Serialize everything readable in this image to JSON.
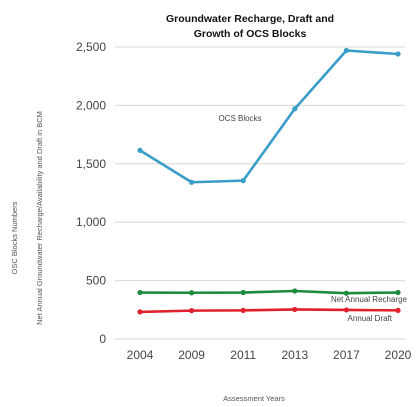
{
  "chart_data": {
    "type": "line",
    "title_lines": [
      "Groundwater Recharge, Draft and",
      "Growth of OCS Blocks"
    ],
    "xlabel": "Assessment Years",
    "ylabel_outer": "OSC Blocks Numbers",
    "ylabel_inner": "Net Annual Groundwater Recharge/Availability and Draft in BCM",
    "categories": [
      "2004",
      "2009",
      "2011",
      "2013",
      "2017",
      "2020"
    ],
    "yticks": [
      "0",
      "500",
      "1,000",
      "1,500",
      "2,000",
      "2,500"
    ],
    "ylim": [
      0,
      2500
    ],
    "grid": true,
    "legend": "none",
    "series": [
      {
        "name": "OCS Blocks",
        "color": "#3a9dc9",
        "values": [
          1615,
          1342,
          1356,
          1971,
          2470,
          2440
        ]
      },
      {
        "name": "Net Annual Recharge",
        "color": "#1e8a3c",
        "values": [
          398,
          396,
          398,
          411,
          392,
          398
        ]
      },
      {
        "name": "Annual Draft",
        "color": "#e0212b",
        "values": [
          232,
          243,
          245,
          253,
          249,
          245
        ]
      }
    ]
  }
}
